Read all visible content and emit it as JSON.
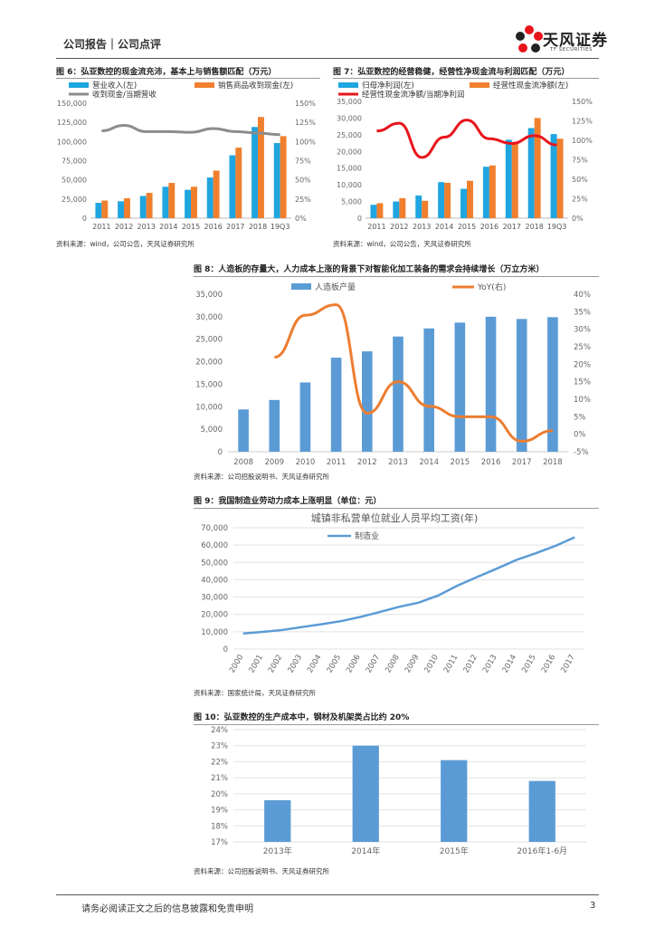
{
  "header": {
    "left": "公司报告｜公司点评",
    "logo_cn": "天风证券",
    "logo_en": "TF SECURITIES"
  },
  "colors": {
    "blue": "#1fa5e0",
    "orange": "#f07f2e",
    "gray": "#8c8c8c",
    "red": "#e8141b",
    "bar_blue": "#5b9bd5",
    "line_orange": "#ed7d31"
  },
  "fig6": {
    "title": "图 6：弘亚数控的现金流充沛，基本上与销售额匹配（万元）",
    "source": "资料来源：wind，公司公告，天风证券研究所",
    "chart_data": {
      "type": "bar",
      "categories": [
        "2011",
        "2012",
        "2013",
        "2014",
        "2015",
        "2016",
        "2017",
        "2018",
        "19Q3"
      ],
      "series": [
        {
          "name": "营业收入(左)",
          "values": [
            20000,
            22000,
            29000,
            41000,
            37000,
            53000,
            82000,
            119000,
            98000
          ]
        },
        {
          "name": "销售商品收到现金(左)",
          "values": [
            23000,
            26000,
            33000,
            46000,
            41000,
            62000,
            92000,
            132000,
            107000
          ]
        },
        {
          "name": "收到现金/当期营收",
          "type": "line",
          "axis": "right",
          "values": [
            1.14,
            1.21,
            1.13,
            1.13,
            1.12,
            1.17,
            1.13,
            1.11,
            1.09
          ]
        }
      ],
      "ylim_left": [
        0,
        150000
      ],
      "ylim_right": [
        0,
        1.5
      ],
      "yticks_left": [
        "0",
        "25,000",
        "50,000",
        "75,000",
        "100,000",
        "125,000",
        "150,000"
      ],
      "yticks_right": [
        "0%",
        "25%",
        "50%",
        "75%",
        "100%",
        "125%",
        "150%"
      ]
    }
  },
  "fig7": {
    "title": "图 7：弘亚数控的经营稳健，经营性净现金流与利润匹配（万元）",
    "source": "资料来源：wind，公司公告，天风证券研究所",
    "chart_data": {
      "type": "bar",
      "categories": [
        "2011",
        "2012",
        "2013",
        "2014",
        "2015",
        "2016",
        "2017",
        "2018",
        "19Q3"
      ],
      "series": [
        {
          "name": "归母净利润(左)",
          "values": [
            4000,
            5000,
            6800,
            10800,
            8800,
            15400,
            23500,
            27000,
            25200
          ]
        },
        {
          "name": "经营性现金流净额(左)",
          "values": [
            4500,
            6000,
            5200,
            10600,
            11200,
            15800,
            22500,
            30000,
            23800
          ]
        },
        {
          "name": "经营性现金流净额/当期净利润",
          "type": "line",
          "axis": "right",
          "values": [
            1.12,
            1.22,
            0.78,
            1.04,
            1.26,
            1.02,
            0.96,
            1.06,
            0.94
          ]
        }
      ],
      "ylim_left": [
        0,
        35000
      ],
      "ylim_right": [
        0,
        1.5
      ],
      "yticks_left": [
        "0",
        "5,000",
        "10,000",
        "15,000",
        "20,000",
        "25,000",
        "30,000",
        "35,000"
      ],
      "yticks_right": [
        "0%",
        "25%",
        "50%",
        "75%",
        "100%",
        "125%",
        "150%"
      ]
    }
  },
  "fig8": {
    "title": "图 8：人造板的存量大，人力成本上涨的背景下对智能化加工装备的需求会持续增长（万立方米）",
    "source": "资料来源：公司招股说明书、天风证券研究所",
    "chart_data": {
      "type": "bar",
      "categories": [
        "2008",
        "2009",
        "2010",
        "2011",
        "2012",
        "2013",
        "2014",
        "2015",
        "2016",
        "2017",
        "2018"
      ],
      "series": [
        {
          "name": "人造板产量",
          "values": [
            9400,
            11500,
            15400,
            20900,
            22300,
            25600,
            27400,
            28700,
            30000,
            29500,
            29900
          ]
        },
        {
          "name": "YoY(右)",
          "type": "line",
          "axis": "right",
          "values": [
            null,
            22,
            34,
            37,
            6,
            15,
            8,
            5,
            5,
            -2,
            1
          ]
        }
      ],
      "ylim_left": [
        0,
        35000
      ],
      "ylim_right": [
        -5,
        40
      ],
      "yticks_left": [
        "0",
        "5,000",
        "10,000",
        "15,000",
        "20,000",
        "25,000",
        "30,000",
        "35,000"
      ],
      "yticks_right": [
        "-5%",
        "0%",
        "5%",
        "10%",
        "15%",
        "20%",
        "25%",
        "30%",
        "35%",
        "40%"
      ]
    }
  },
  "fig9": {
    "title": "图 9：我国制造业劳动力成本上涨明显（单位：元）",
    "source": "资料来源：国家统计局，天风证券研究所",
    "chart_data": {
      "type": "line",
      "title": "城镇非私营单位就业人员平均工资(年)",
      "x": [
        "2000",
        "2001",
        "2002",
        "2003",
        "2004",
        "2005",
        "2006",
        "2007",
        "2008",
        "2009",
        "2010",
        "2011",
        "2012",
        "2013",
        "2014",
        "2015",
        "2016",
        "2017"
      ],
      "series": [
        {
          "name": "制造业",
          "values": [
            9000,
            9900,
            11000,
            12700,
            14300,
            16100,
            18500,
            21400,
            24400,
            26800,
            30900,
            36700,
            41600,
            46400,
            51400,
            55300,
            59500,
            64500
          ]
        }
      ],
      "ylim": [
        0,
        70000
      ],
      "yticks": [
        "0",
        "10,000",
        "20,000",
        "30,000",
        "40,000",
        "50,000",
        "60,000",
        "70,000"
      ]
    }
  },
  "fig10": {
    "title": "图 10：弘亚数控的生产成本中，钢材及机架类占比约 20%",
    "source": "资料来源：公司招股说明书、天风证券研究所",
    "chart_data": {
      "type": "bar",
      "categories": [
        "2013年",
        "2014年",
        "2015年",
        "2016年1-6月"
      ],
      "values": [
        19.6,
        23.0,
        22.1,
        20.8
      ],
      "ylim": [
        17,
        24
      ],
      "yticks": [
        "17%",
        "18%",
        "19%",
        "20%",
        "21%",
        "22%",
        "23%",
        "24%"
      ]
    }
  },
  "footer": {
    "text": "请务必阅读正文之后的信息披露和免责申明",
    "page": "3"
  }
}
